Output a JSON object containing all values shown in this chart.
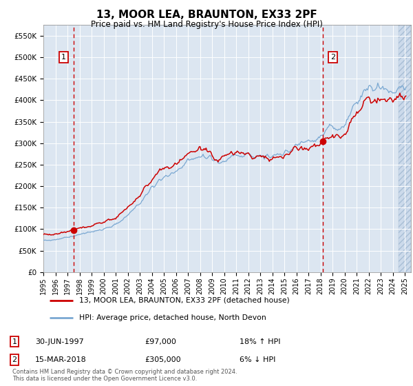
{
  "title": "13, MOOR LEA, BRAUNTON, EX33 2PF",
  "subtitle": "Price paid vs. HM Land Registry's House Price Index (HPI)",
  "ylabel_ticks": [
    "£0",
    "£50K",
    "£100K",
    "£150K",
    "£200K",
    "£250K",
    "£300K",
    "£350K",
    "£400K",
    "£450K",
    "£500K",
    "£550K"
  ],
  "ylim": [
    0,
    575000
  ],
  "ytick_values": [
    0,
    50000,
    100000,
    150000,
    200000,
    250000,
    300000,
    350000,
    400000,
    450000,
    500000,
    550000
  ],
  "legend_line1": "13, MOOR LEA, BRAUNTON, EX33 2PF (detached house)",
  "legend_line2": "HPI: Average price, detached house, North Devon",
  "label1_date": "30-JUN-1997",
  "label1_price": "£97,000",
  "label1_hpi": "18% ↑ HPI",
  "label2_date": "15-MAR-2018",
  "label2_price": "£305,000",
  "label2_hpi": "6% ↓ HPI",
  "sale1_year": 1997.5,
  "sale1_price": 97000,
  "sale2_year": 2018.2,
  "sale2_price": 305000,
  "footer": "Contains HM Land Registry data © Crown copyright and database right 2024.\nThis data is licensed under the Open Government Licence v3.0.",
  "bg_color": "#dce6f1",
  "line_color_red": "#cc0000",
  "line_color_blue": "#7aa8d2",
  "vline_color": "#cc0000",
  "xmin": 1995,
  "xmax": 2025.5,
  "hatch_start": 2024.5
}
